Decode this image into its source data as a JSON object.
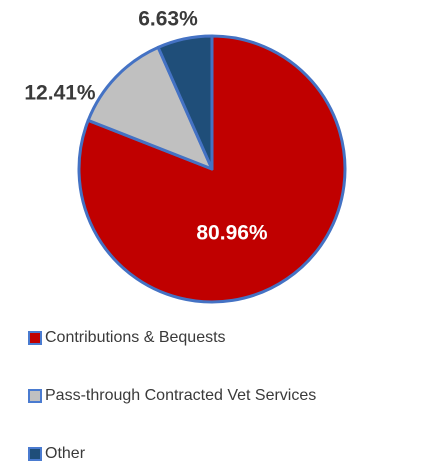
{
  "chart_data": {
    "type": "pie",
    "title": "",
    "categories": [
      "Contributions & Bequests",
      "Pass-through Contracted Vet Services",
      "Other"
    ],
    "values": [
      80.96,
      12.41,
      6.63
    ],
    "labels": [
      "80.96%",
      "12.41%",
      "6.63%"
    ],
    "colors": [
      "#c00000",
      "#c0c0c0",
      "#1f4e79"
    ],
    "outline_color": "#4472c4",
    "start_angle_deg": 0,
    "direction": "clockwise",
    "legend_position": "bottom"
  },
  "legend": {
    "items": [
      {
        "label": "Contributions & Bequests",
        "color": "#c00000"
      },
      {
        "label": "Pass-through Contracted Vet Services",
        "color": "#c0c0c0"
      },
      {
        "label": "Other",
        "color": "#1f4e79"
      }
    ]
  }
}
